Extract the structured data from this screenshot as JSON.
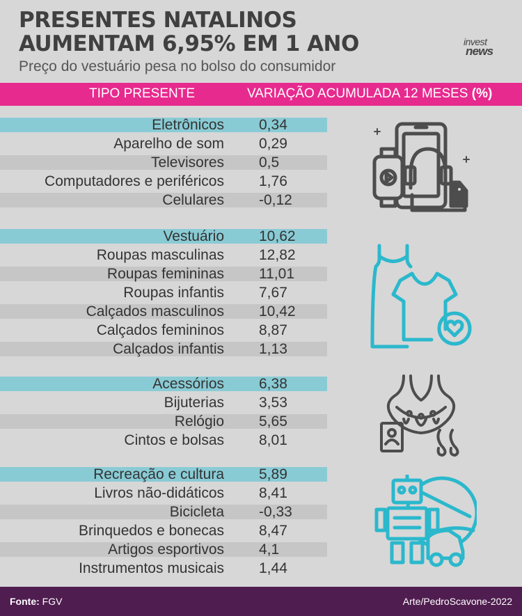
{
  "header": {
    "title_line1": "PRESENTES NATALINOS",
    "title_line2": "AUMENTAM 6,95% EM 1 ANO",
    "subtitle": "Preço do vestuário pesa no bolso do consumidor",
    "logo_line1": "invest",
    "logo_line2": "news"
  },
  "table": {
    "col1": "TIPO PRESENTE",
    "col2": "VARIAÇÃO ACUMULADA 12 MESES",
    "col2_unit": "(%)",
    "groups": [
      {
        "name": "Eletrônicos",
        "value": "0,34",
        "icon": "electronics-icon",
        "items": [
          {
            "name": "Aparelho de som",
            "value": "0,29"
          },
          {
            "name": "Televisores",
            "value": "0,5"
          },
          {
            "name": "Computadores e periféricos",
            "value": "1,76"
          },
          {
            "name": "Celulares",
            "value": "-0,12"
          }
        ]
      },
      {
        "name": "Vestuário",
        "value": "10,62",
        "icon": "clothing-icon",
        "items": [
          {
            "name": "Roupas masculinas",
            "value": "12,82"
          },
          {
            "name": "Roupas femininas",
            "value": "11,01"
          },
          {
            "name": "Roupas infantis",
            "value": "7,67"
          },
          {
            "name": "Calçados masculinos",
            "value": "10,42"
          },
          {
            "name": "Calçados femininos",
            "value": "8,87"
          },
          {
            "name": "Calçados infantis",
            "value": "1,13"
          }
        ]
      },
      {
        "name": "Acessórios",
        "value": "6,38",
        "icon": "jewelry-icon",
        "items": [
          {
            "name": "Bijuterias",
            "value": "3,53"
          },
          {
            "name": "Relógio",
            "value": "5,65"
          },
          {
            "name": "Cintos e bolsas",
            "value": "8,01"
          }
        ]
      },
      {
        "name": "Recreação e cultura",
        "value": "5,89",
        "icon": "toys-icon",
        "items": [
          {
            "name": "Livros não-didáticos",
            "value": "8,41"
          },
          {
            "name": "Bicicleta",
            "value": "-0,33"
          },
          {
            "name": "Brinquedos e bonecas",
            "value": "8,47"
          },
          {
            "name": "Artigos esportivos",
            "value": "4,1"
          },
          {
            "name": "Instrumentos musicais",
            "value": "1,44"
          }
        ]
      }
    ]
  },
  "footer": {
    "source_label": "Fonte:",
    "source": "FGV",
    "credit": "Arte/PedroScavone-2022"
  },
  "colors": {
    "header_bar": "#e72a8e",
    "group_row": "#89cbd5",
    "shade_row": "#c6c6c6",
    "footer": "#4f1d4f",
    "icon_dark": "#4d4d4d",
    "icon_cyan": "#2bb8cc"
  }
}
